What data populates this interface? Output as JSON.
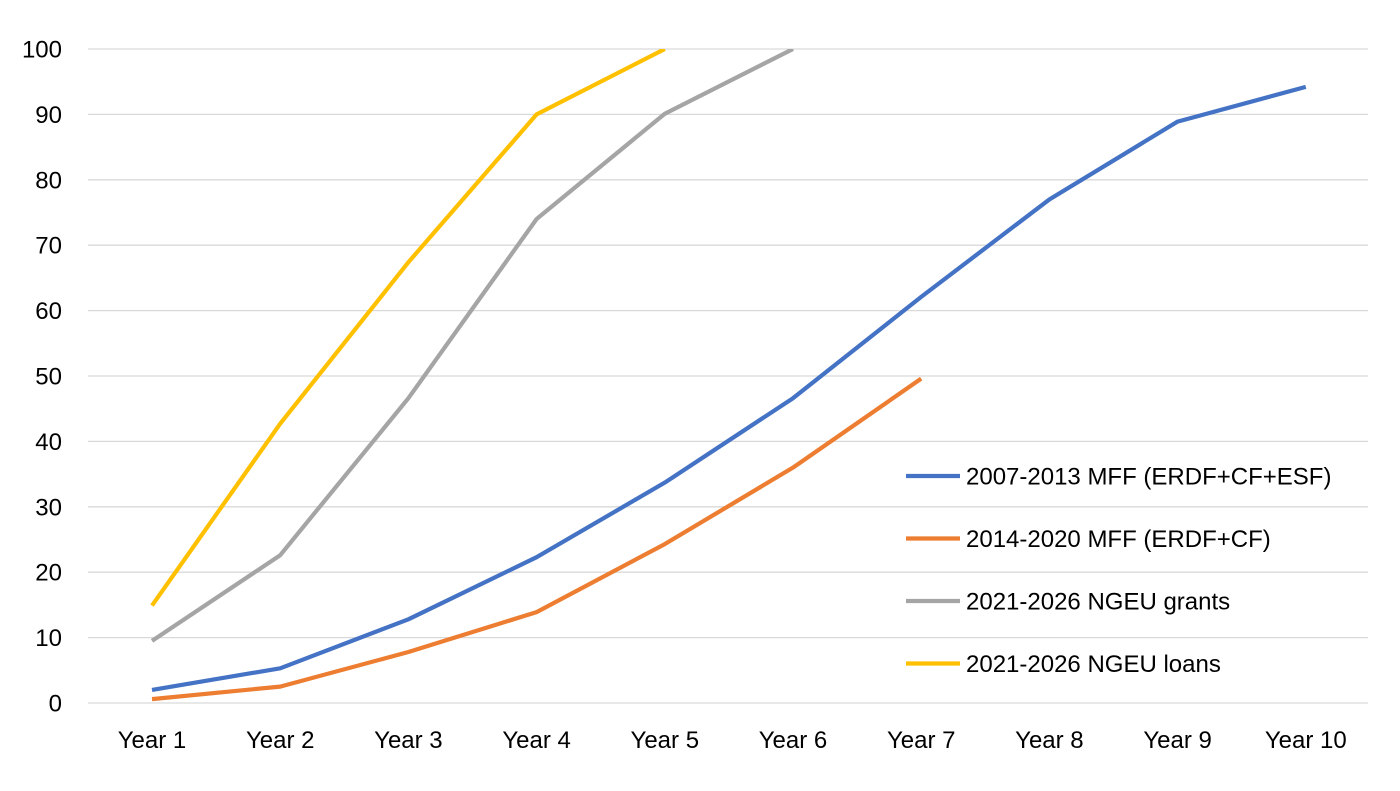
{
  "chart_data": {
    "type": "line",
    "title": "",
    "xlabel": "",
    "ylabel": "",
    "categories": [
      "Year 1",
      "Year 2",
      "Year 3",
      "Year 4",
      "Year 5",
      "Year 6",
      "Year 7",
      "Year 8",
      "Year 9",
      "Year 10"
    ],
    "ylim": [
      0,
      100
    ],
    "yticks": [
      0,
      10,
      20,
      30,
      40,
      50,
      60,
      70,
      80,
      90,
      100
    ],
    "grid": true,
    "legend_position": "right",
    "series": [
      {
        "name": "2007-2013 MFF (ERDF+CF+ESF)",
        "color": "#4472C4",
        "values": [
          2.0,
          5.3,
          12.8,
          22.3,
          33.7,
          46.6,
          62.1,
          77.0,
          88.9,
          94.2
        ]
      },
      {
        "name": "2014-2020 MFF (ERDF+CF)",
        "color": "#ED7D31",
        "values": [
          0.6,
          2.5,
          7.8,
          13.9,
          24.3,
          36.0,
          49.6,
          null,
          null,
          null
        ]
      },
      {
        "name": "2021-2026 NGEU grants",
        "color": "#A5A5A5",
        "values": [
          9.5,
          22.6,
          46.6,
          74.0,
          90.1,
          100.0,
          null,
          null,
          null,
          null
        ]
      },
      {
        "name": "2021-2026 NGEU loans",
        "color": "#FFC000",
        "values": [
          14.9,
          42.7,
          67.4,
          90.0,
          100.0,
          null,
          null,
          null,
          null,
          null
        ]
      }
    ]
  }
}
